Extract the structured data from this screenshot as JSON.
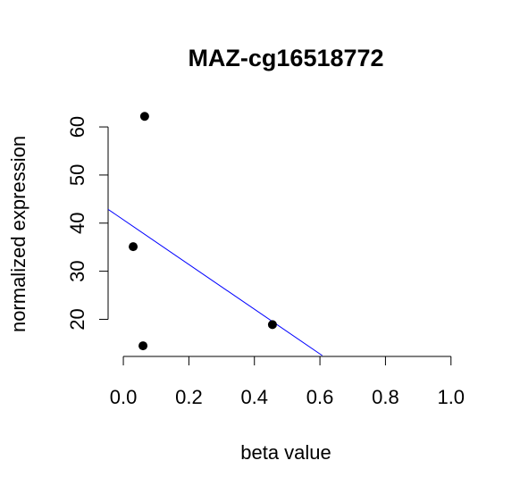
{
  "chart_data": {
    "type": "scatter",
    "title": "MAZ-cg16518772",
    "xlabel": "beta value",
    "ylabel": "normalized expression",
    "xlim": [
      0.0,
      1.0
    ],
    "x_ticks": [
      "0.0",
      "0.2",
      "0.4",
      "0.6",
      "0.8",
      "1.0"
    ],
    "y_ticks": [
      "20",
      "30",
      "40",
      "50",
      "60"
    ],
    "points": [
      {
        "x": 0.065,
        "y": 62.2
      },
      {
        "x": 0.03,
        "y": 35.1
      },
      {
        "x": 0.455,
        "y": 18.9
      },
      {
        "x": 0.06,
        "y": 14.5
      }
    ],
    "regression_line": {
      "color": "#0000ff",
      "intercept": 40.7,
      "slope": -46.5
    },
    "grid": false,
    "legend": "none"
  }
}
